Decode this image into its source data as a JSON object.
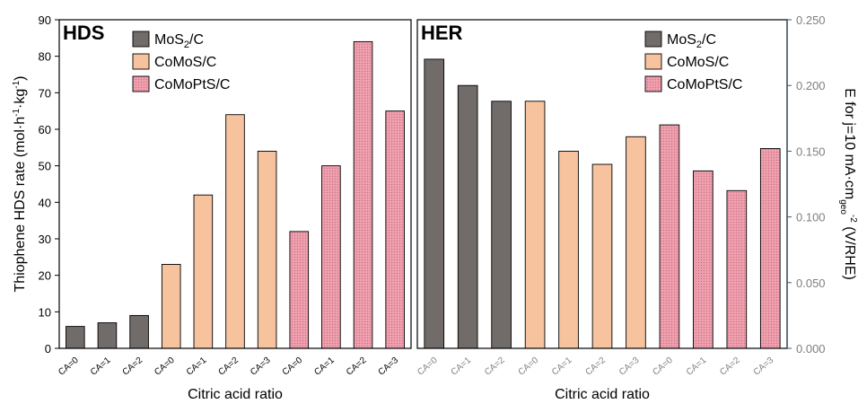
{
  "colors": {
    "MoS2/C": "#716b69",
    "CoMoS/C": "#f6c39e",
    "CoMoPtS/C": "#ee9fae",
    "right_axis": "#44546a"
  },
  "chart_data": [
    {
      "type": "bar",
      "title": "HDS",
      "xlabel": "Citric acid ratio",
      "ylabel_main": "Thiophene HDS rate (mol·h",
      "ylabel_sup1": "-1",
      "ylabel_mid": "·kg",
      "ylabel_sup2": "-1",
      "ylabel_end": ")",
      "ylim": [
        0,
        90
      ],
      "yticks": [
        "0",
        "10",
        "20",
        "30",
        "40",
        "50",
        "60",
        "70",
        "80",
        "90"
      ],
      "categories": [
        "CA=0",
        "CA=1",
        "CA=2",
        "CA=0",
        "CA=1",
        "CA=2",
        "CA=3",
        "CA=0",
        "CA=1",
        "CA=2",
        "CA=3"
      ],
      "groups": [
        "MoS2/C",
        "MoS2/C",
        "MoS2/C",
        "CoMoS/C",
        "CoMoS/C",
        "CoMoS/C",
        "CoMoS/C",
        "CoMoPtS/C",
        "CoMoPtS/C",
        "CoMoPtS/C",
        "CoMoPtS/C"
      ],
      "values": [
        6,
        7,
        9,
        23,
        42,
        64,
        54,
        32,
        50,
        84,
        65
      ],
      "legend": [
        {
          "key": "MoS2/C",
          "main": "MoS",
          "sub": "2",
          "tail": "/C"
        },
        {
          "key": "CoMoS/C",
          "main": "CoMoS/C",
          "sub": "",
          "tail": ""
        },
        {
          "key": "CoMoPtS/C",
          "main": "CoMoPtS/C",
          "sub": "",
          "tail": ""
        }
      ],
      "legend_position": "top-left"
    },
    {
      "type": "bar",
      "title": "HER",
      "xlabel": "Citric acid ratio",
      "ylabel_main": "E for j=10 mA·cm",
      "ylabel_sub": "geo",
      "ylabel_sup": "-2",
      "ylabel_end": " (V/RHE)",
      "ylim": [
        0,
        0.25
      ],
      "yticks": [
        "0.000",
        "0.050",
        "0.100",
        "0.150",
        "0.200",
        "0.250"
      ],
      "categories": [
        "CA=0",
        "CA=1",
        "CA=2",
        "CA=0",
        "CA=1",
        "CA=2",
        "CA=3",
        "CA=0",
        "CA=1",
        "CA=2",
        "CA=3"
      ],
      "groups": [
        "MoS2/C",
        "MoS2/C",
        "MoS2/C",
        "CoMoS/C",
        "CoMoS/C",
        "CoMoS/C",
        "CoMoS/C",
        "CoMoPtS/C",
        "CoMoPtS/C",
        "CoMoPtS/C",
        "CoMoPtS/C"
      ],
      "values": [
        0.22,
        0.2,
        0.188,
        0.188,
        0.15,
        0.14,
        0.161,
        0.17,
        0.135,
        0.12,
        0.152
      ],
      "legend": [
        {
          "key": "MoS2/C",
          "main": "MoS",
          "sub": "2",
          "tail": "/C"
        },
        {
          "key": "CoMoS/C",
          "main": "CoMoS/C",
          "sub": "",
          "tail": ""
        },
        {
          "key": "CoMoPtS/C",
          "main": "CoMoPtS/C",
          "sub": "",
          "tail": ""
        }
      ],
      "legend_position": "top-right"
    }
  ]
}
